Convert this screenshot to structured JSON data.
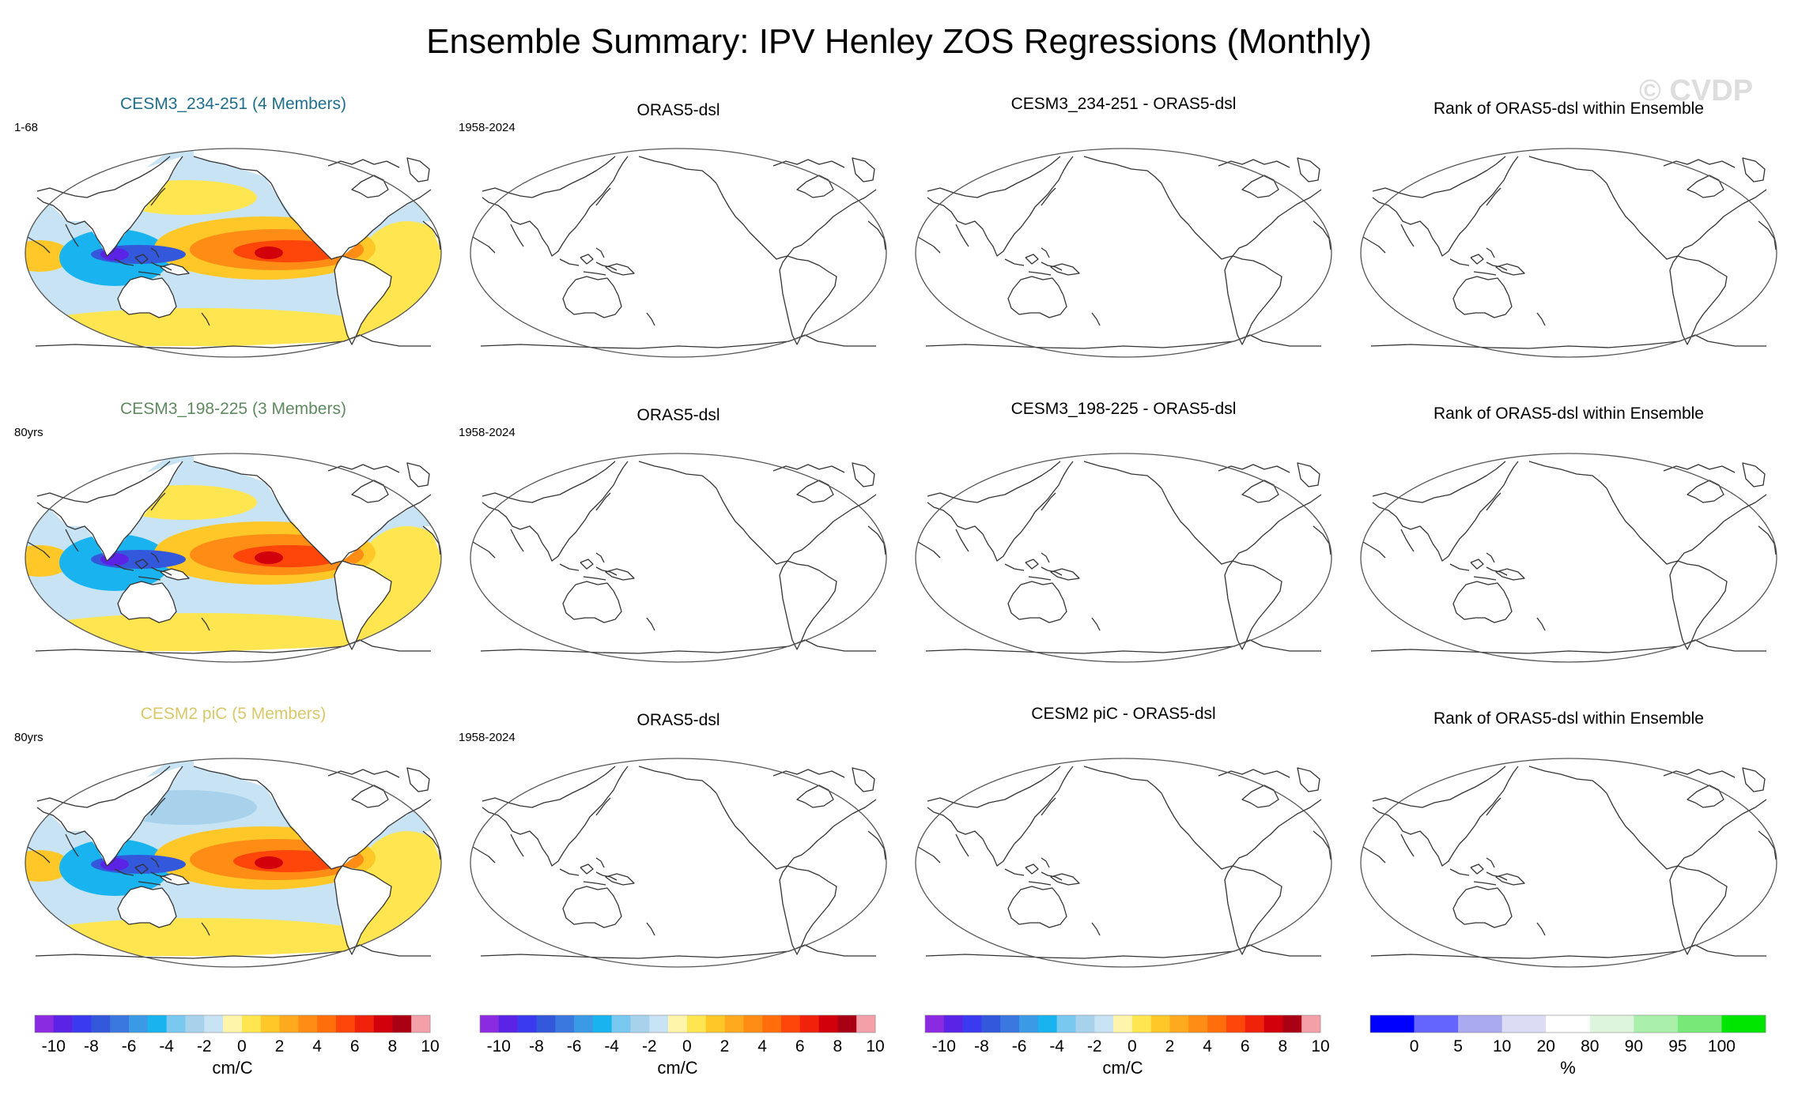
{
  "title": "Ensemble Summary: IPV Henley ZOS Regressions (Monthly)",
  "watermark": "© CVDP",
  "rows": [
    {
      "model_title": "CESM3_234-251 (4 Members)",
      "model_title_color": "#1f6e8c",
      "model_corner": "1-68",
      "obs_title": "ORAS5-dsl",
      "obs_corner": "1958-2024",
      "diff_title": "CESM3_234-251 - ORAS5-dsl",
      "rank_title": "Rank of ORAS5-dsl within Ensemble"
    },
    {
      "model_title": "CESM3_198-225 (3 Members)",
      "model_title_color": "#5f8a5f",
      "model_corner": "80yrs",
      "obs_title": "ORAS5-dsl",
      "obs_corner": "1958-2024",
      "diff_title": "CESM3_198-225 - ORAS5-dsl",
      "rank_title": "Rank of ORAS5-dsl within Ensemble"
    },
    {
      "model_title": "CESM2 piC (5 Members)",
      "model_title_color": "#d8c86a",
      "model_corner": "80yrs",
      "obs_title": "ORAS5-dsl",
      "obs_corner": "1958-2024",
      "diff_title": "CESM2 piC - ORAS5-dsl",
      "rank_title": "Rank of ORAS5-dsl within Ensemble"
    }
  ],
  "chart_data": {
    "type": "heatmap",
    "projection": "Robinson (Pacific-centred)",
    "variable": "ZOS regression on IPV Henley index",
    "panels_with_data": [
      "CESM3_234-251 (4 Members)",
      "CESM3_198-225 (3 Members)",
      "CESM2 piC (5 Members)"
    ],
    "panels_blank": [
      "ORAS5-dsl",
      "difference",
      "rank"
    ],
    "pattern_features": [
      {
        "feature": "equatorial eastern Pacific positive maximum",
        "value_cm_per_C": 8
      },
      {
        "feature": "western Pacific / Indonesian negative minimum",
        "value_cm_per_C": -9
      },
      {
        "feature": "southwest Pacific / South Atlantic",
        "value_cm_per_C": 1
      },
      {
        "feature": "subtropical North Pacific",
        "value_cm_per_C": -2
      }
    ],
    "colorbars": [
      {
        "units": "cm/C",
        "levels": [
          -10,
          -9,
          -8,
          -7,
          -6,
          -5,
          -4,
          -3,
          -2,
          -1,
          0,
          1,
          2,
          3,
          4,
          5,
          6,
          7,
          8,
          9,
          10
        ],
        "tick_labels": [
          "-10",
          "-8",
          "-6",
          "-4",
          "-2",
          "0",
          "2",
          "4",
          "6",
          "8",
          "10"
        ],
        "colors": [
          "#8a2be2",
          "#5a23e6",
          "#3a3af0",
          "#3358dc",
          "#3a78e0",
          "#3a9ae6",
          "#19b4f0",
          "#78c8f0",
          "#a8d2ec",
          "#c8e4f4",
          "#fff5aa",
          "#ffe650",
          "#ffc828",
          "#ffaa1e",
          "#ff8c14",
          "#ff6e0a",
          "#ff460a",
          "#f0230a",
          "#d2000a",
          "#aa0014",
          "#f4a0a8"
        ]
      },
      {
        "units": "cm/C",
        "levels": [
          -10,
          -9,
          -8,
          -7,
          -6,
          -5,
          -4,
          -3,
          -2,
          -1,
          0,
          1,
          2,
          3,
          4,
          5,
          6,
          7,
          8,
          9,
          10
        ],
        "tick_labels": [
          "-10",
          "-8",
          "-6",
          "-4",
          "-2",
          "0",
          "2",
          "4",
          "6",
          "8",
          "10"
        ],
        "colors": [
          "#8a2be2",
          "#5a23e6",
          "#3a3af0",
          "#3358dc",
          "#3a78e0",
          "#3a9ae6",
          "#19b4f0",
          "#78c8f0",
          "#a8d2ec",
          "#c8e4f4",
          "#fff5aa",
          "#ffe650",
          "#ffc828",
          "#ffaa1e",
          "#ff8c14",
          "#ff6e0a",
          "#ff460a",
          "#f0230a",
          "#d2000a",
          "#aa0014",
          "#f4a0a8"
        ]
      },
      {
        "units": "cm/C",
        "levels": [
          -10,
          -9,
          -8,
          -7,
          -6,
          -5,
          -4,
          -3,
          -2,
          -1,
          0,
          1,
          2,
          3,
          4,
          5,
          6,
          7,
          8,
          9,
          10
        ],
        "tick_labels": [
          "-10",
          "-8",
          "-6",
          "-4",
          "-2",
          "0",
          "2",
          "4",
          "6",
          "8",
          "10"
        ],
        "colors": [
          "#8a2be2",
          "#5a23e6",
          "#3a3af0",
          "#3358dc",
          "#3a78e0",
          "#3a9ae6",
          "#19b4f0",
          "#78c8f0",
          "#a8d2ec",
          "#c8e4f4",
          "#fff5aa",
          "#ffe650",
          "#ffc828",
          "#ffaa1e",
          "#ff8c14",
          "#ff6e0a",
          "#ff460a",
          "#f0230a",
          "#d2000a",
          "#aa0014",
          "#f4a0a8"
        ]
      },
      {
        "units": "%",
        "levels": [
          0,
          5,
          10,
          20,
          80,
          90,
          95,
          100
        ],
        "tick_labels": [
          "0",
          "5",
          "10",
          "20",
          "80",
          "90",
          "95",
          "100"
        ],
        "colors": [
          "#0000ff",
          "#6464ff",
          "#aaaaf0",
          "#dcdcf4",
          "#ffffff",
          "#dcf5dc",
          "#aaf0aa",
          "#78e878",
          "#00e600"
        ]
      }
    ]
  }
}
